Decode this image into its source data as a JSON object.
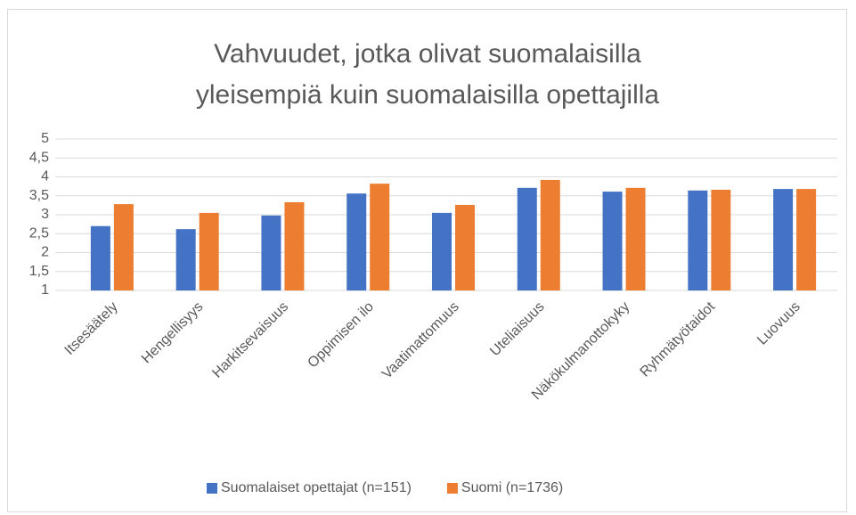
{
  "chart_data": {
    "type": "bar",
    "title": "Vahvuudet, jotka olivat suomalaisilla yleisempiä kuin suomalaisilla opettajilla",
    "categories": [
      "Itsesäätely",
      "Hengellisyys",
      "Harkitsevaisuus",
      "Oppimisen ilo",
      "Vaatimattomuus",
      "Uteliaisuus",
      "Näkökulmanottokyky",
      "Ryhmätyötaidot",
      "Luovuus"
    ],
    "series": [
      {
        "name": "Suomalaiset opettajat (n=151)",
        "color": "#4472c4",
        "values": [
          2.7,
          2.62,
          2.98,
          3.56,
          3.05,
          3.71,
          3.61,
          3.64,
          3.68
        ]
      },
      {
        "name": "Suomi (n=1736)",
        "color": "#ed7d31",
        "values": [
          3.28,
          3.05,
          3.33,
          3.82,
          3.26,
          3.92,
          3.71,
          3.66,
          3.68
        ]
      }
    ],
    "ylim": [
      1,
      5
    ],
    "yticks": [
      1,
      {
        "value": 1.5,
        "label": "1,5"
      },
      2,
      {
        "value": 2.5,
        "label": "2,5"
      },
      3,
      {
        "value": 3.5,
        "label": "3,5"
      },
      4,
      {
        "value": 4.5,
        "label": "4,5"
      },
      5
    ],
    "grid": true,
    "legend": "bottom"
  }
}
